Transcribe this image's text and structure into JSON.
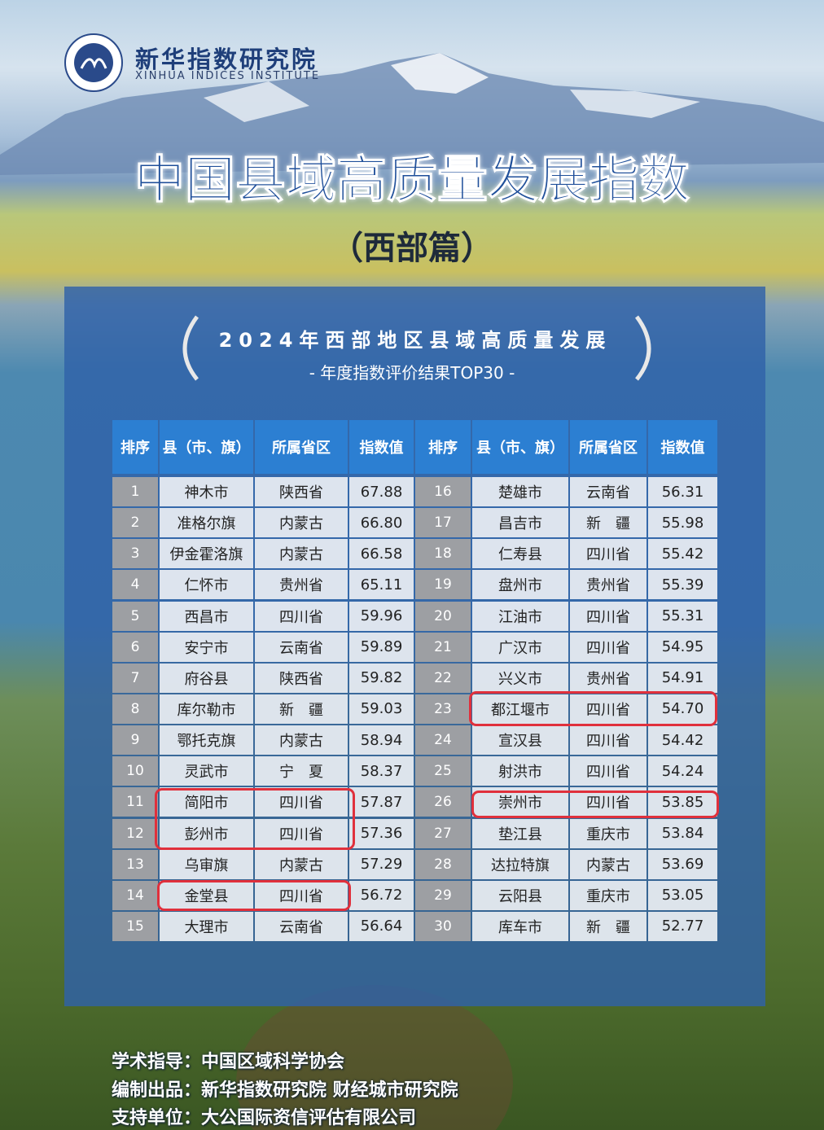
{
  "header": {
    "org_name": "新华指数研究院",
    "org_name_en": "XINHUA INDICES INSTITUTE",
    "title": "中国县域高质量发展指数",
    "subtitle": "（西部篇）"
  },
  "panel": {
    "heading": "2024年西部地区县域高质量发展",
    "subheading": "- 年度指数评价结果TOP30 -"
  },
  "table": {
    "columns": [
      "排序",
      "县（市、旗）",
      "所属省区",
      "指数值",
      "排序",
      "县（市、旗）",
      "所属省区",
      "指数值"
    ],
    "rows": [
      [
        "1",
        "神木市",
        "陕西省",
        "67.88",
        "16",
        "楚雄市",
        "云南省",
        "56.31"
      ],
      [
        "2",
        "准格尔旗",
        "内蒙古",
        "66.80",
        "17",
        "昌吉市",
        "新　疆",
        "55.98"
      ],
      [
        "3",
        "伊金霍洛旗",
        "内蒙古",
        "66.58",
        "18",
        "仁寿县",
        "四川省",
        "55.42"
      ],
      [
        "4",
        "仁怀市",
        "贵州省",
        "65.11",
        "19",
        "盘州市",
        "贵州省",
        "55.39"
      ],
      [
        "5",
        "西昌市",
        "四川省",
        "59.96",
        "20",
        "江油市",
        "四川省",
        "55.31"
      ],
      [
        "6",
        "安宁市",
        "云南省",
        "59.89",
        "21",
        "广汉市",
        "四川省",
        "54.95"
      ],
      [
        "7",
        "府谷县",
        "陕西省",
        "59.82",
        "22",
        "兴义市",
        "贵州省",
        "54.91"
      ],
      [
        "8",
        "库尔勒市",
        "新　疆",
        "59.03",
        "23",
        "都江堰市",
        "四川省",
        "54.70"
      ],
      [
        "9",
        "鄂托克旗",
        "内蒙古",
        "58.94",
        "24",
        "宣汉县",
        "四川省",
        "54.42"
      ],
      [
        "10",
        "灵武市",
        "宁　夏",
        "58.37",
        "25",
        "射洪市",
        "四川省",
        "54.24"
      ],
      [
        "11",
        "简阳市",
        "四川省",
        "57.87",
        "26",
        "崇州市",
        "四川省",
        "53.85"
      ],
      [
        "12",
        "彭州市",
        "四川省",
        "57.36",
        "27",
        "垫江县",
        "重庆市",
        "53.84"
      ],
      [
        "13",
        "乌审旗",
        "内蒙古",
        "57.29",
        "28",
        "达拉特旗",
        "内蒙古",
        "53.69"
      ],
      [
        "14",
        "金堂县",
        "四川省",
        "56.72",
        "29",
        "云阳县",
        "重庆市",
        "53.05"
      ],
      [
        "15",
        "大理市",
        "云南省",
        "56.64",
        "30",
        "库车市",
        "新　疆",
        "52.77"
      ]
    ]
  },
  "footer": {
    "lines": [
      "学术指导：中国区域科学协会",
      "编制出品：新华指数研究院 财经城市研究院",
      "支持单位：大公国际资信评估有限公司"
    ]
  }
}
